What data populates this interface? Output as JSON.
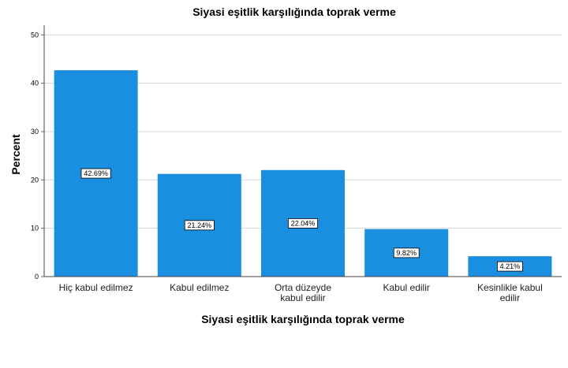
{
  "chart_data": {
    "type": "bar",
    "title": "Siyasi eşitlik karşılığında toprak verme",
    "xlabel": "Siyasi eşitlik karşılığında toprak verme",
    "ylabel": "Percent",
    "categories": [
      [
        "Hiç kabul edilmez"
      ],
      [
        "Kabul edilmez"
      ],
      [
        "Orta düzeyde",
        "kabul edilir"
      ],
      [
        "Kabul edilir"
      ],
      [
        "Kesinlikle kabul",
        "edilir"
      ]
    ],
    "values": [
      42.69,
      21.24,
      22.04,
      9.82,
      4.21
    ],
    "data_labels": [
      "42.69%",
      "21.24%",
      "22.04%",
      "9.82%",
      "4.21%"
    ],
    "ylim": [
      0,
      52
    ],
    "yticks": [
      0,
      10,
      20,
      30,
      40,
      50
    ],
    "grid": true,
    "bar_color": "#1a8fe0"
  }
}
